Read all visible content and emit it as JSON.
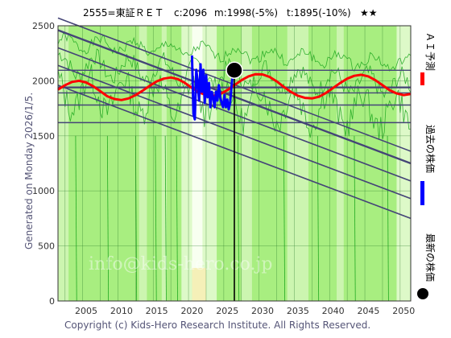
{
  "header": {
    "title_code": "2555=東証ＲＥＴ",
    "title_current": "c:2096",
    "title_mid": "m:1998(-5%)",
    "title_target": "t:1895(-10%)",
    "title_stars": "★★"
  },
  "side_label": "Generated on Monday 2026/1/5.",
  "footer": "Copyright (c) Kids-Hero Research Institute. All Rights Reserved.",
  "watermark": "info@kids-hero.co.jp",
  "legend": [
    {
      "label": "ＡＩ予測",
      "color": "#ff0000"
    },
    {
      "label": "過去の株価",
      "color": "#0000ff"
    },
    {
      "label": "最新の株価",
      "color": "#000000"
    }
  ],
  "colors": {
    "plot_bg": "#a8ee80",
    "band_light": "#ccf5b0",
    "band_lighter": "#ddf9c8",
    "band_white": "#f8fff0",
    "band_yellow": "#f5f0b8",
    "grid": "#2a7a2a",
    "trend": "#444477",
    "green_line": "#22aa22",
    "ai_line": "#ff0000",
    "past_line": "#0000ff",
    "latest_dot": "#000000"
  },
  "chart_data": {
    "type": "line",
    "title": "2555=東証ＲＥＴ c:2096 m:1998(-5%) t:1895(-10%) ★★",
    "xlim": [
      2001,
      2051
    ],
    "ylim": [
      0,
      2500
    ],
    "xticks": [
      "2005",
      "2010",
      "2015",
      "2020",
      "2025",
      "2030",
      "2035",
      "2040",
      "2045",
      "2050"
    ],
    "yticks": [
      "0",
      "500",
      "1000",
      "1500",
      "2000",
      "2500"
    ],
    "xtick_values": [
      2005,
      2010,
      2015,
      2020,
      2025,
      2030,
      2035,
      2040,
      2045,
      2050
    ],
    "ytick_values": [
      0,
      500,
      1000,
      1500,
      2000,
      2500
    ],
    "grid": true,
    "latest": {
      "x": 2026.0,
      "y": 2096
    },
    "horizontal_levels": [
      2096,
      1940,
      1890,
      1780,
      1620
    ],
    "trend_lines": [
      {
        "x": [
          2001,
          2051
        ],
        "y": [
          2460,
          1250
        ]
      },
      {
        "x": [
          2001,
          2051
        ],
        "y": [
          2300,
          1090
        ]
      },
      {
        "x": [
          2001,
          2051
        ],
        "y": [
          2570,
          1360
        ]
      },
      {
        "x": [
          2001,
          2051
        ],
        "y": [
          2140,
          930
        ]
      },
      {
        "x": [
          2001,
          2051
        ],
        "y": [
          1960,
          750
        ]
      }
    ],
    "series": [
      {
        "name": "ＡＩ予測",
        "x": [
          2001,
          2002,
          2003,
          2004,
          2005,
          2006,
          2007,
          2008,
          2009,
          2010,
          2011,
          2012,
          2013,
          2014,
          2015,
          2016,
          2017,
          2018,
          2019,
          2020,
          2021,
          2022,
          2023,
          2024,
          2025,
          2026,
          2027,
          2028,
          2029,
          2030,
          2031,
          2032,
          2033,
          2034,
          2035,
          2036,
          2037,
          2038,
          2039,
          2040,
          2041,
          2042,
          2043,
          2044,
          2045,
          2046,
          2047,
          2048,
          2049,
          2050,
          2051
        ],
        "y": [
          1920,
          1960,
          1990,
          2000,
          1985,
          1950,
          1905,
          1860,
          1835,
          1825,
          1840,
          1870,
          1910,
          1955,
          1995,
          2020,
          2030,
          2015,
          1980,
          1935,
          1895,
          1870,
          1865,
          1880,
          1915,
          1960,
          2005,
          2040,
          2060,
          2058,
          2035,
          1995,
          1945,
          1900,
          1865,
          1845,
          1840,
          1855,
          1890,
          1935,
          1980,
          2020,
          2045,
          2055,
          2040,
          2005,
          1960,
          1915,
          1885,
          1870,
          1880
        ]
      },
      {
        "name": "過去の株価",
        "x": [
          2020.0,
          2020.2,
          2020.4,
          2020.6,
          2020.8,
          2021.0,
          2021.2,
          2021.4,
          2021.6,
          2021.8,
          2022.0,
          2022.2,
          2022.4,
          2022.6,
          2022.8,
          2023.0,
          2023.2,
          2023.4,
          2023.6,
          2023.8,
          2024.0,
          2024.2,
          2024.4,
          2024.6,
          2024.8,
          2025.0,
          2025.2,
          2025.4,
          2025.6,
          2025.8,
          2026.0
        ],
        "y": [
          2230,
          1700,
          1650,
          2100,
          2000,
          1820,
          2150,
          1900,
          2100,
          1800,
          2050,
          1850,
          1980,
          1760,
          1900,
          1850,
          1760,
          1900,
          1820,
          1960,
          1850,
          1800,
          1760,
          1870,
          1760,
          1830,
          1740,
          1800,
          1950,
          2080,
          2096
        ]
      }
    ]
  }
}
